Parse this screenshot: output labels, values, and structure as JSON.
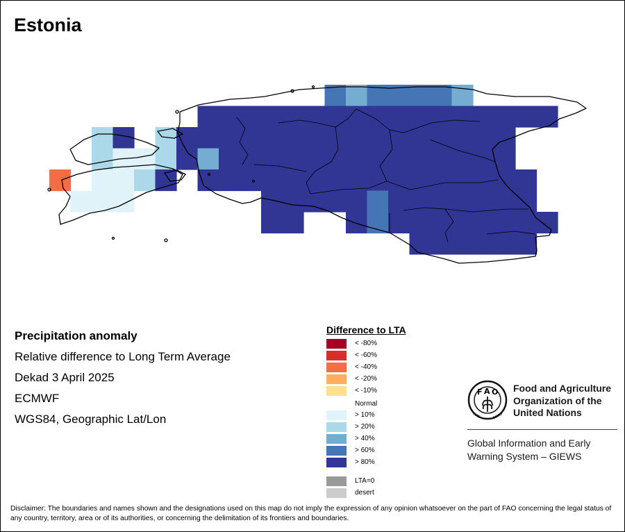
{
  "title": "Estonia",
  "info": {
    "product": "Precipitation anomaly",
    "description": "Relative difference to Long Term Average",
    "period": "Dekad 3 April 2025",
    "source": "ECMWF",
    "projection": "WGS84, Geographic Lat/Lon"
  },
  "legend": {
    "title": "Difference to LTA",
    "items": [
      {
        "label": "< -80%",
        "color": "#a50026"
      },
      {
        "label": "< -60%",
        "color": "#d73027"
      },
      {
        "label": "< -40%",
        "color": "#f46d43"
      },
      {
        "label": "< -20%",
        "color": "#fdae61"
      },
      {
        "label": "< -10%",
        "color": "#fee090"
      },
      {
        "label": "Normal",
        "color": "#ffffff"
      },
      {
        "label": "> 10%",
        "color": "#e0f3f8"
      },
      {
        "label": "> 20%",
        "color": "#abd9e9"
      },
      {
        "label": "> 40%",
        "color": "#74add1"
      },
      {
        "label": "> 60%",
        "color": "#4575b4"
      },
      {
        "label": "> 80%",
        "color": "#313695"
      },
      {
        "label": "LTA=0",
        "color": "#999999"
      },
      {
        "label": "desert",
        "color": "#cccccc"
      }
    ]
  },
  "fao": {
    "name_line1": "Food and Agriculture",
    "name_line2": "Organization of the",
    "name_line3": "United Nations",
    "giews_line1": "Global Information and Early",
    "giews_line2": "Warning System – GIEWS",
    "logo_motto": "FIAT PANIS"
  },
  "disclaimer": "Disclaimer: The boundaries and names shown and the designations used on this map do not imply the expression of any opinion whatsoever on the part of FAO concerning the legal status of any country, territory, area or of its authorities, or concerning the delimitation of its frontiers and boundaries."
}
